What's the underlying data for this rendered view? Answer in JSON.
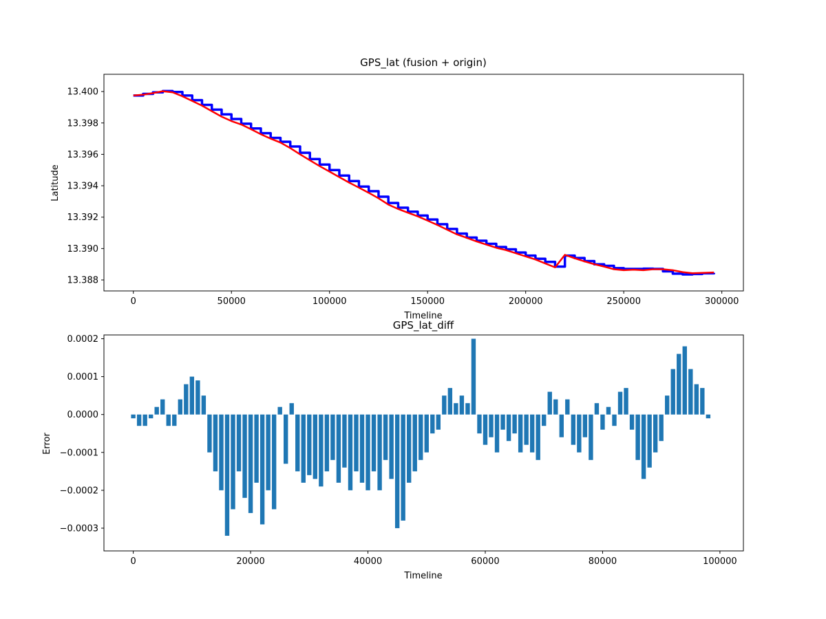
{
  "chart_data": [
    {
      "type": "line",
      "title": "GPS_lat (fusion + origin)",
      "xlabel": "Timeline",
      "ylabel": "Latitude",
      "xlim": [
        -15000,
        311000
      ],
      "ylim": [
        13.3873,
        13.4011
      ],
      "xticks": [
        0,
        50000,
        100000,
        150000,
        200000,
        250000,
        300000
      ],
      "yticks": [
        13.388,
        13.39,
        13.392,
        13.394,
        13.396,
        13.398,
        13.4
      ],
      "ytick_labels": [
        "13.388",
        "13.390",
        "13.392",
        "13.394",
        "13.396",
        "13.398",
        "13.400"
      ],
      "grid": false,
      "series": [
        {
          "color": "#0000ff",
          "style": "step",
          "x": [
            0,
            5000,
            10000,
            15000,
            20000,
            25000,
            30000,
            35000,
            40000,
            45000,
            50000,
            55000,
            60000,
            65000,
            70000,
            75000,
            80000,
            85000,
            90000,
            95000,
            100000,
            105000,
            110000,
            115000,
            120000,
            125000,
            130000,
            135000,
            140000,
            145000,
            150000,
            155000,
            160000,
            165000,
            170000,
            175000,
            180000,
            185000,
            190000,
            195000,
            200000,
            205000,
            210000,
            215000,
            220000,
            225000,
            230000,
            235000,
            240000,
            245000,
            250000,
            255000,
            260000,
            265000,
            270000,
            275000,
            280000,
            285000,
            290000,
            296000
          ],
          "values": [
            13.39975,
            13.39985,
            13.39995,
            13.40003,
            13.39997,
            13.39975,
            13.39945,
            13.39915,
            13.39885,
            13.39855,
            13.39825,
            13.39795,
            13.39765,
            13.39735,
            13.39705,
            13.3968,
            13.3965,
            13.3961,
            13.3957,
            13.39535,
            13.395,
            13.39465,
            13.3943,
            13.39395,
            13.39365,
            13.3933,
            13.3929,
            13.3926,
            13.39235,
            13.3921,
            13.39185,
            13.39155,
            13.39125,
            13.39095,
            13.3907,
            13.3905,
            13.3903,
            13.3901,
            13.38995,
            13.38975,
            13.38955,
            13.38935,
            13.38915,
            13.38885,
            13.38955,
            13.3894,
            13.3892,
            13.389,
            13.3889,
            13.38875,
            13.3887,
            13.3887,
            13.38872,
            13.3887,
            13.38855,
            13.3884,
            13.38835,
            13.38838,
            13.38842,
            13.38845
          ]
        },
        {
          "color": "#ff0000",
          "style": "line",
          "x": [
            0,
            5000,
            10000,
            15000,
            20000,
            25000,
            30000,
            35000,
            40000,
            45000,
            50000,
            55000,
            60000,
            65000,
            70000,
            75000,
            80000,
            85000,
            90000,
            95000,
            100000,
            105000,
            110000,
            115000,
            120000,
            125000,
            130000,
            135000,
            140000,
            145000,
            150000,
            155000,
            160000,
            165000,
            170000,
            175000,
            180000,
            185000,
            190000,
            195000,
            200000,
            205000,
            210000,
            215000,
            220000,
            225000,
            230000,
            235000,
            240000,
            245000,
            250000,
            255000,
            260000,
            265000,
            270000,
            275000,
            280000,
            285000,
            290000,
            296000
          ],
          "values": [
            13.39975,
            13.3998,
            13.3999,
            13.40002,
            13.39995,
            13.3997,
            13.3994,
            13.3991,
            13.39875,
            13.3984,
            13.39812,
            13.3979,
            13.3976,
            13.39728,
            13.397,
            13.39675,
            13.3964,
            13.396,
            13.39562,
            13.39525,
            13.3949,
            13.39455,
            13.3942,
            13.39388,
            13.39355,
            13.3932,
            13.3928,
            13.39252,
            13.39228,
            13.39205,
            13.39178,
            13.3915,
            13.3912,
            13.3909,
            13.39068,
            13.39045,
            13.39025,
            13.39005,
            13.3899,
            13.3897,
            13.3895,
            13.3893,
            13.38905,
            13.3888,
            13.3896,
            13.38938,
            13.38918,
            13.389,
            13.38885,
            13.38868,
            13.38862,
            13.38865,
            13.38862,
            13.38868,
            13.38868,
            13.38862,
            13.3885,
            13.38843,
            13.38845,
            13.38848
          ]
        }
      ]
    },
    {
      "type": "bar",
      "title": "GPS_lat_diff",
      "xlabel": "Timeline",
      "ylabel": "Error",
      "xlim": [
        -5000,
        104000
      ],
      "ylim": [
        -0.00036,
        0.00021
      ],
      "xticks": [
        0,
        20000,
        40000,
        60000,
        80000,
        100000
      ],
      "yticks": [
        -0.0003,
        -0.0002,
        -0.0001,
        0.0,
        0.0001,
        0.0002
      ],
      "ytick_labels": [
        "−0.0003",
        "−0.0002",
        "−0.0001",
        "0.0000",
        "0.0001",
        "0.0002"
      ],
      "grid": false,
      "color": "#1f77b4",
      "x": [
        0,
        1000,
        2000,
        3000,
        4000,
        5000,
        6000,
        7000,
        8000,
        9000,
        10000,
        11000,
        12000,
        13000,
        14000,
        15000,
        16000,
        17000,
        18000,
        19000,
        20000,
        21000,
        22000,
        23000,
        24000,
        25000,
        26000,
        27000,
        28000,
        29000,
        30000,
        31000,
        32000,
        33000,
        34000,
        35000,
        36000,
        37000,
        38000,
        39000,
        40000,
        41000,
        42000,
        43000,
        44000,
        45000,
        46000,
        47000,
        48000,
        49000,
        50000,
        51000,
        52000,
        53000,
        54000,
        55000,
        56000,
        57000,
        58000,
        59000,
        60000,
        61000,
        62000,
        63000,
        64000,
        65000,
        66000,
        67000,
        68000,
        69000,
        70000,
        71000,
        72000,
        73000,
        74000,
        75000,
        76000,
        77000,
        78000,
        79000,
        80000,
        81000,
        82000,
        83000,
        84000,
        85000,
        86000,
        87000,
        88000,
        89000,
        90000,
        91000,
        92000,
        93000,
        94000,
        95000,
        96000,
        97000,
        98000
      ],
      "values": [
        -1e-05,
        -3e-05,
        -3e-05,
        -1e-05,
        2e-05,
        4e-05,
        -3e-05,
        -3e-05,
        4e-05,
        8e-05,
        0.0001,
        9e-05,
        5e-05,
        -0.0001,
        -0.00015,
        -0.0002,
        -0.00032,
        -0.00025,
        -0.00015,
        -0.00022,
        -0.00026,
        -0.00018,
        -0.00029,
        -0.0002,
        -0.00025,
        2e-05,
        -0.00013,
        3e-05,
        -0.00015,
        -0.00018,
        -0.00016,
        -0.00017,
        -0.00019,
        -0.00015,
        -0.00012,
        -0.00018,
        -0.00014,
        -0.0002,
        -0.00015,
        -0.00018,
        -0.0002,
        -0.00015,
        -0.0002,
        -0.00012,
        -0.00017,
        -0.0003,
        -0.00028,
        -0.00018,
        -0.00015,
        -0.00012,
        -0.0001,
        -5e-05,
        -4e-05,
        5e-05,
        7e-05,
        3e-05,
        5e-05,
        3e-05,
        0.0002,
        -5e-05,
        -8e-05,
        -6e-05,
        -0.0001,
        -4e-05,
        -7e-05,
        -5e-05,
        -0.0001,
        -8e-05,
        -0.0001,
        -0.00012,
        -3e-05,
        6e-05,
        4e-05,
        -6e-05,
        4e-05,
        -8e-05,
        -0.0001,
        -6e-05,
        -0.00012,
        3e-05,
        -4e-05,
        2e-05,
        -3e-05,
        6e-05,
        7e-05,
        -4e-05,
        -0.00012,
        -0.00017,
        -0.00014,
        -0.0001,
        -7e-05,
        5e-05,
        0.00012,
        0.00016,
        0.00018,
        0.00012,
        8e-05,
        7e-05,
        -1e-05
      ]
    }
  ]
}
